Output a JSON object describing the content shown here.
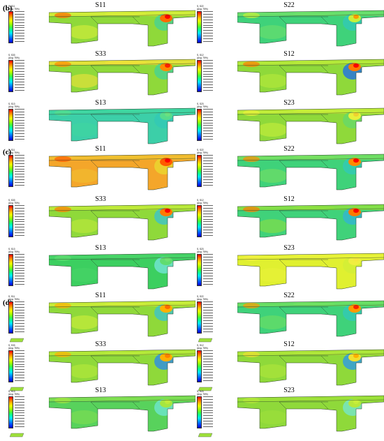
{
  "sections": [
    {
      "label": "(b)",
      "top": 6
    },
    {
      "label": "(c)",
      "top": 212
    },
    {
      "label": "(d)",
      "top": 428
    }
  ],
  "legend": {
    "var_prefix": "S, ",
    "avg_text": "(Avg: 75%)"
  },
  "panels": [
    {
      "id": "b-s11",
      "title": "S11",
      "var": "S11",
      "scheme": "b1",
      "col": 0,
      "row": 0
    },
    {
      "id": "b-s22",
      "title": "S22",
      "var": "S22",
      "scheme": "b2",
      "col": 1,
      "row": 0
    },
    {
      "id": "b-s33",
      "title": "S33",
      "var": "S33",
      "scheme": "b3",
      "col": 0,
      "row": 1
    },
    {
      "id": "b-s12",
      "title": "S12",
      "var": "S12",
      "scheme": "b4",
      "col": 1,
      "row": 1
    },
    {
      "id": "b-s13",
      "title": "S13",
      "var": "S13",
      "scheme": "b5",
      "col": 0,
      "row": 2
    },
    {
      "id": "b-s23",
      "title": "S23",
      "var": "S23",
      "scheme": "b6",
      "col": 1,
      "row": 2
    },
    {
      "id": "c-s11",
      "title": "S11",
      "var": "S11",
      "scheme": "c1",
      "col": 0,
      "row": 3
    },
    {
      "id": "c-s22",
      "title": "S22",
      "var": "S22",
      "scheme": "c2",
      "col": 1,
      "row": 3
    },
    {
      "id": "c-s33",
      "title": "S33",
      "var": "S33",
      "scheme": "c3",
      "col": 0,
      "row": 4
    },
    {
      "id": "c-s12",
      "title": "S12",
      "var": "S12",
      "scheme": "c4",
      "col": 1,
      "row": 4
    },
    {
      "id": "c-s13",
      "title": "S13",
      "var": "S13",
      "scheme": "c5",
      "col": 0,
      "row": 5
    },
    {
      "id": "c-s23",
      "title": "S23",
      "var": "S23",
      "scheme": "c6",
      "col": 1,
      "row": 5
    },
    {
      "id": "d-s11",
      "title": "S11",
      "var": "S11",
      "scheme": "d1",
      "col": 0,
      "row": 6
    },
    {
      "id": "d-s22",
      "title": "S22",
      "var": "S22",
      "scheme": "d2",
      "col": 1,
      "row": 6
    },
    {
      "id": "d-s33",
      "title": "S33",
      "var": "S33",
      "scheme": "d3",
      "col": 0,
      "row": 7
    },
    {
      "id": "d-s12",
      "title": "S12",
      "var": "S12",
      "scheme": "d4",
      "col": 1,
      "row": 7
    },
    {
      "id": "d-s13",
      "title": "S13",
      "var": "S13",
      "scheme": "d5",
      "col": 0,
      "row": 8
    },
    {
      "id": "d-s23",
      "title": "S23",
      "var": "S23",
      "scheme": "d6",
      "col": 1,
      "row": 8
    }
  ],
  "schemes": {
    "b1": {
      "base": "#8fd93a",
      "band": "#d9ef3a",
      "hot": [
        "#ff6a00",
        "#ff0000"
      ],
      "cool": "#3cd2a0"
    },
    "b2": {
      "base": "#3fd27a",
      "band": "#6ee06a",
      "hot": [
        "#c8f03a",
        "#ff9a00"
      ],
      "cool": "#30c8c0"
    },
    "b3": {
      "base": "#8fd93a",
      "band": "#f0e23a",
      "hot": [
        "#ff8a00",
        "#ff2000"
      ],
      "cool": "#3cd2a0"
    },
    "b4": {
      "base": "#8fd93a",
      "band": "#b8ea3a",
      "hot": [
        "#ff7a00",
        "#ff0000"
      ],
      "cool": "#1060ff"
    },
    "b5": {
      "base": "#3ccfa8",
      "band": "#40d6a0",
      "hot": [
        "#56dc8c",
        "#6ae080"
      ],
      "cool": "#30c8b8"
    },
    "b6": {
      "base": "#8fd93a",
      "band": "#c8ee3a",
      "hot": [
        "#e8f03a",
        "#f0d030"
      ],
      "cool": "#60d870"
    },
    "c1": {
      "base": "#f4a62a",
      "band": "#f0c030",
      "hot": [
        "#ff5a00",
        "#ff0000"
      ],
      "cool": "#e8e030"
    },
    "c2": {
      "base": "#3fd27a",
      "band": "#78e060",
      "hot": [
        "#ff8a00",
        "#ff0000"
      ],
      "cool": "#30c8c0"
    },
    "c3": {
      "base": "#8fd93a",
      "band": "#c0ea3a",
      "hot": [
        "#ff7a00",
        "#ff0000"
      ],
      "cool": "#30c0e0"
    },
    "c4": {
      "base": "#40d27a",
      "band": "#8ee040",
      "hot": [
        "#ff7a00",
        "#ff0000"
      ],
      "cool": "#30b0e0"
    },
    "c5": {
      "base": "#3ccf60",
      "band": "#48d468",
      "hot": [
        "#60dc70",
        "#70e070"
      ],
      "cool": "#7ae8e8"
    },
    "c6": {
      "base": "#e0f030",
      "band": "#e8f238",
      "hot": [
        "#f0ee40",
        "#f4e840"
      ],
      "cool": "#d0ee38"
    },
    "d1": {
      "base": "#8fd93a",
      "band": "#d0ee3a",
      "hot": [
        "#ffb000",
        "#ff6a00"
      ],
      "cool": "#30c0e0"
    },
    "d2": {
      "base": "#3fd27a",
      "band": "#70e060",
      "hot": [
        "#ff9a00",
        "#ff2000"
      ],
      "cool": "#30c8c0"
    },
    "d3": {
      "base": "#8fd93a",
      "band": "#b8ea3a",
      "hot": [
        "#ffb000",
        "#ff8000"
      ],
      "cool": "#2080ff"
    },
    "d4": {
      "base": "#8fd93a",
      "band": "#b0e63a",
      "hot": [
        "#f0e030",
        "#ffb000"
      ],
      "cool": "#2090ff"
    },
    "d5": {
      "base": "#58d25c",
      "band": "#80de50",
      "hot": [
        "#a6e640",
        "#c0ea3a"
      ],
      "cool": "#70e8e0"
    },
    "d6": {
      "base": "#8fd93a",
      "band": "#9ee03a",
      "hot": [
        "#b8e83a",
        "#c8ee3a"
      ],
      "cool": "#70e8e0"
    }
  }
}
